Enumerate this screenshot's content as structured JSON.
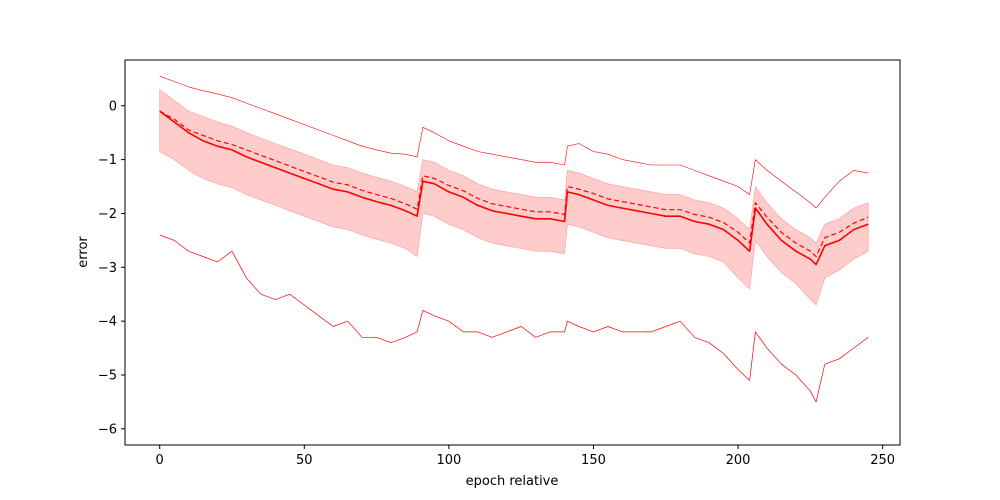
{
  "chart_data": {
    "type": "line",
    "title": "",
    "xlabel": "epoch relative",
    "ylabel": "error",
    "xlim": [
      -12,
      256
    ],
    "ylim": [
      -6.3,
      0.85
    ],
    "xticks": [
      0,
      50,
      100,
      150,
      200,
      250
    ],
    "yticks": [
      0,
      -1,
      -2,
      -3,
      -4,
      -5,
      -6
    ],
    "xtick_labels": [
      "0",
      "50",
      "100",
      "150",
      "200",
      "250"
    ],
    "ytick_labels": [
      "0",
      "−1",
      "−2",
      "−3",
      "−4",
      "−5",
      "−6"
    ],
    "grid": false,
    "legend": "none",
    "color": "#ff0000",
    "band_color": "#ffcccc",
    "x": [
      0,
      5,
      10,
      15,
      20,
      25,
      30,
      35,
      40,
      45,
      50,
      55,
      60,
      65,
      70,
      75,
      80,
      85,
      89,
      91,
      95,
      100,
      105,
      110,
      115,
      120,
      125,
      130,
      135,
      140,
      141,
      145,
      150,
      155,
      160,
      165,
      170,
      175,
      180,
      185,
      190,
      195,
      200,
      204,
      206,
      210,
      215,
      220,
      225,
      227,
      230,
      235,
      240,
      245
    ],
    "series": [
      {
        "style": "solid",
        "values": [
          -0.1,
          -0.3,
          -0.5,
          -0.65,
          -0.75,
          -0.82,
          -0.95,
          -1.05,
          -1.15,
          -1.25,
          -1.35,
          -1.45,
          -1.55,
          -1.6,
          -1.7,
          -1.78,
          -1.85,
          -1.95,
          -2.05,
          -1.4,
          -1.45,
          -1.6,
          -1.7,
          -1.85,
          -1.95,
          -2.0,
          -2.05,
          -2.1,
          -2.1,
          -2.15,
          -1.6,
          -1.65,
          -1.75,
          -1.85,
          -1.9,
          -1.95,
          -2.0,
          -2.05,
          -2.05,
          -2.15,
          -2.2,
          -2.3,
          -2.5,
          -2.7,
          -1.9,
          -2.2,
          -2.5,
          -2.7,
          -2.85,
          -2.95,
          -2.6,
          -2.5,
          -2.3,
          -2.2
        ]
      },
      {
        "style": "dashed",
        "values": [
          -0.1,
          -0.25,
          -0.45,
          -0.55,
          -0.65,
          -0.72,
          -0.82,
          -0.92,
          -1.02,
          -1.12,
          -1.22,
          -1.32,
          -1.42,
          -1.47,
          -1.57,
          -1.65,
          -1.72,
          -1.82,
          -1.92,
          -1.3,
          -1.35,
          -1.48,
          -1.58,
          -1.72,
          -1.82,
          -1.87,
          -1.92,
          -1.97,
          -1.97,
          -2.02,
          -1.5,
          -1.55,
          -1.63,
          -1.73,
          -1.78,
          -1.83,
          -1.88,
          -1.93,
          -1.93,
          -2.02,
          -2.07,
          -2.17,
          -2.35,
          -2.55,
          -1.8,
          -2.07,
          -2.35,
          -2.55,
          -2.7,
          -2.8,
          -2.45,
          -2.35,
          -2.18,
          -2.07
        ]
      },
      {
        "style": "thin-upper",
        "values": [
          0.55,
          0.45,
          0.35,
          0.28,
          0.22,
          0.15,
          0.05,
          -0.05,
          -0.15,
          -0.25,
          -0.35,
          -0.45,
          -0.55,
          -0.65,
          -0.75,
          -0.82,
          -0.88,
          -0.9,
          -0.95,
          -0.4,
          -0.5,
          -0.65,
          -0.75,
          -0.85,
          -0.9,
          -0.95,
          -1.0,
          -1.05,
          -1.05,
          -1.1,
          -0.75,
          -0.7,
          -0.85,
          -0.9,
          -1.0,
          -1.05,
          -1.1,
          -1.1,
          -1.1,
          -1.2,
          -1.3,
          -1.4,
          -1.5,
          -1.65,
          -1.0,
          -1.2,
          -1.4,
          -1.6,
          -1.8,
          -1.9,
          -1.7,
          -1.4,
          -1.2,
          -1.25
        ]
      },
      {
        "style": "noisy-lower",
        "values": [
          -2.4,
          -2.5,
          -2.7,
          -2.8,
          -2.9,
          -2.7,
          -3.2,
          -3.5,
          -3.6,
          -3.5,
          -3.7,
          -3.9,
          -4.1,
          -4.0,
          -4.3,
          -4.3,
          -4.4,
          -4.3,
          -4.2,
          -3.8,
          -3.9,
          -4.0,
          -4.2,
          -4.2,
          -4.3,
          -4.2,
          -4.1,
          -4.3,
          -4.2,
          -4.2,
          -4.0,
          -4.1,
          -4.2,
          -4.1,
          -4.2,
          -4.2,
          -4.2,
          -4.1,
          -4.0,
          -4.3,
          -4.4,
          -4.6,
          -4.9,
          -5.1,
          -4.2,
          -4.5,
          -4.8,
          -5.0,
          -5.3,
          -5.5,
          -4.8,
          -4.7,
          -4.5,
          -4.3
        ]
      }
    ],
    "band": {
      "upper": [
        0.3,
        0.1,
        -0.1,
        -0.2,
        -0.3,
        -0.38,
        -0.5,
        -0.6,
        -0.7,
        -0.8,
        -0.9,
        -1.0,
        -1.1,
        -1.15,
        -1.25,
        -1.33,
        -1.4,
        -1.5,
        -1.6,
        -1.0,
        -1.05,
        -1.2,
        -1.3,
        -1.45,
        -1.55,
        -1.6,
        -1.65,
        -1.7,
        -1.7,
        -1.75,
        -1.2,
        -1.25,
        -1.35,
        -1.45,
        -1.5,
        -1.55,
        -1.6,
        -1.65,
        -1.65,
        -1.75,
        -1.8,
        -1.9,
        -2.1,
        -2.3,
        -1.5,
        -1.8,
        -2.1,
        -2.3,
        -2.45,
        -2.55,
        -2.2,
        -2.1,
        -1.9,
        -1.8
      ],
      "lower": [
        -0.85,
        -1.0,
        -1.2,
        -1.35,
        -1.45,
        -1.52,
        -1.65,
        -1.75,
        -1.85,
        -1.95,
        -2.05,
        -2.15,
        -2.25,
        -2.3,
        -2.4,
        -2.48,
        -2.55,
        -2.65,
        -2.8,
        -2.0,
        -2.05,
        -2.2,
        -2.3,
        -2.45,
        -2.55,
        -2.6,
        -2.65,
        -2.7,
        -2.7,
        -2.75,
        -2.2,
        -2.25,
        -2.35,
        -2.45,
        -2.5,
        -2.55,
        -2.6,
        -2.65,
        -2.65,
        -2.75,
        -2.8,
        -2.9,
        -3.2,
        -3.4,
        -2.5,
        -2.8,
        -3.1,
        -3.3,
        -3.6,
        -3.7,
        -3.2,
        -3.05,
        -2.85,
        -2.7
      ]
    }
  }
}
